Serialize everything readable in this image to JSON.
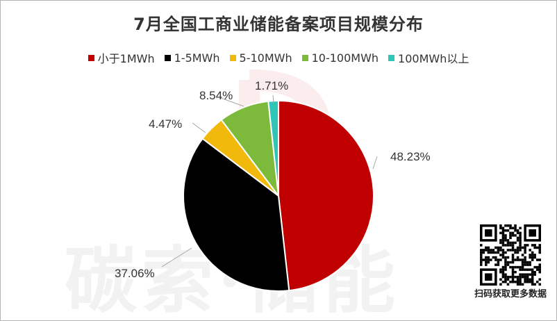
{
  "chart_data": {
    "type": "pie",
    "title": "7月全国工商业储能备案项目规模分布",
    "legend_position": "top",
    "categories": [
      "小于1MWh",
      "1-5MWh",
      "5-10MWh",
      "10-100MWh",
      "100MWh以上"
    ],
    "values": [
      48.23,
      37.06,
      4.47,
      8.54,
      1.71
    ],
    "value_labels": [
      "48.23%",
      "37.06%",
      "4.47%",
      "8.54%",
      "1.71%"
    ],
    "colors": [
      "#c00000",
      "#000000",
      "#f2b90d",
      "#7dba3c",
      "#2ec4b6"
    ]
  },
  "watermark": {
    "text": "碳索·储能"
  },
  "qr": {
    "caption": "扫码获取更多数据"
  }
}
